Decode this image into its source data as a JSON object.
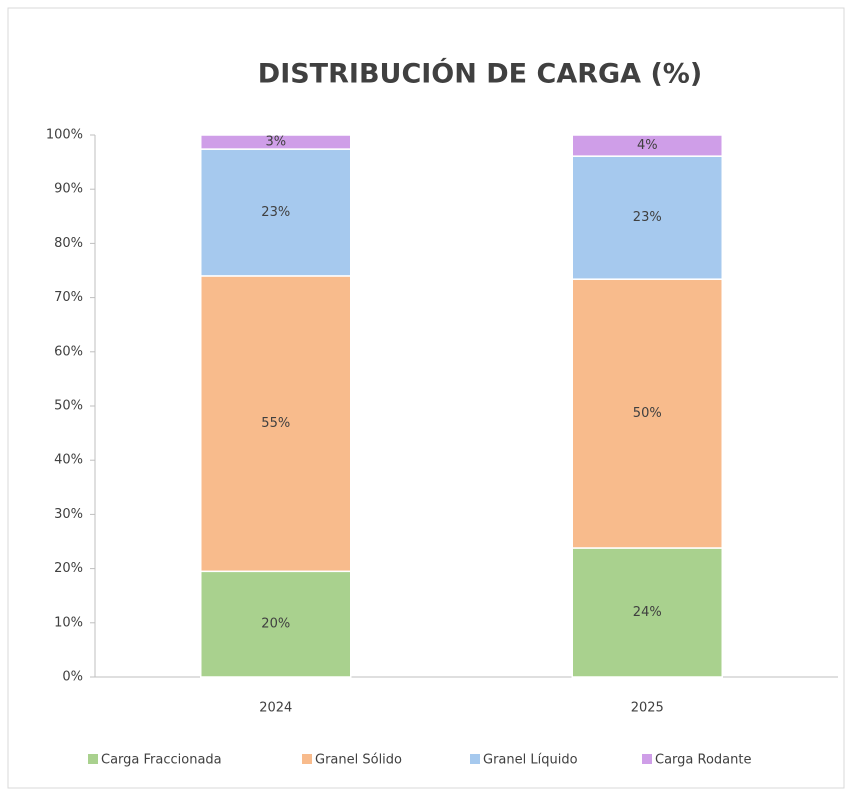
{
  "chart_data": {
    "type": "stacked_bar",
    "title": "DISTRIBUCIÓN DE CARGA (%)",
    "categories": [
      "2024",
      "2025"
    ],
    "series": [
      {
        "name": "Carga Fraccionada",
        "color": "#a9d18e",
        "values": [
          19.5,
          23.8
        ],
        "value_labels": [
          "20%",
          "24%"
        ]
      },
      {
        "name": "Granel Sólido",
        "color": "#f8bb8c",
        "values": [
          54.5,
          49.6
        ],
        "value_labels": [
          "55%",
          "50%"
        ]
      },
      {
        "name": "Granel Líquido",
        "color": "#a6c9ee",
        "values": [
          23.4,
          22.7
        ],
        "value_labels": [
          "23%",
          "23%"
        ]
      },
      {
        "name": "Carga Rodante",
        "color": "#cf9ee8",
        "values": [
          2.6,
          3.9
        ],
        "value_labels": [
          "3%",
          "4%"
        ]
      }
    ],
    "ylim": [
      0,
      100
    ],
    "yticks": [
      {
        "value": 0,
        "label": "0%"
      },
      {
        "value": 10,
        "label": "10%"
      },
      {
        "value": 20,
        "label": "20%"
      },
      {
        "value": 30,
        "label": "30%"
      },
      {
        "value": 40,
        "label": "40%"
      },
      {
        "value": 50,
        "label": "50%"
      },
      {
        "value": 60,
        "label": "60%"
      },
      {
        "value": 70,
        "label": "70%"
      },
      {
        "value": 80,
        "label": "80%"
      },
      {
        "value": 90,
        "label": "90%"
      },
      {
        "value": 100,
        "label": "100%"
      }
    ],
    "grid": false,
    "legend": "bottom"
  }
}
